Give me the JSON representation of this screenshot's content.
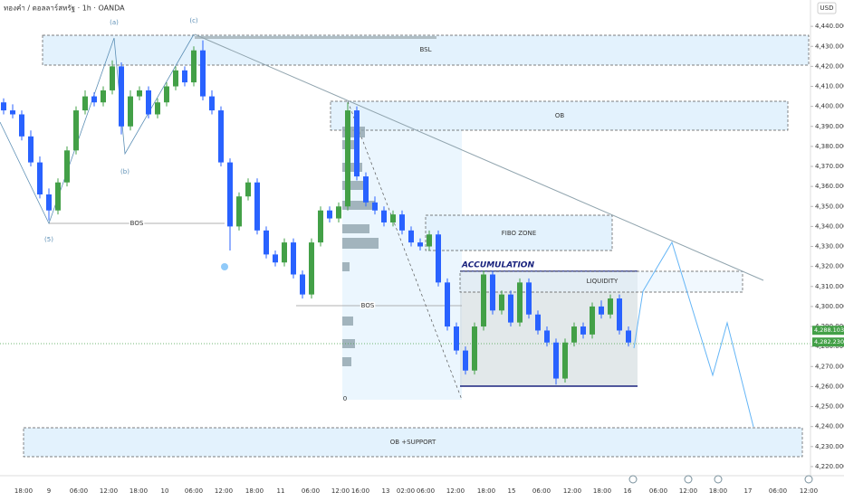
{
  "chart_data": {
    "type": "candlestick",
    "title": "ทองคำ / ดอลลาร์สหรัฐ · 1h · OANDA",
    "currency": "USD",
    "up_color": "#43a047",
    "down_color": "#2962ff",
    "open": [
      4402,
      4398,
      4396,
      4385,
      4372,
      4356,
      4348,
      4362,
      4378,
      4398,
      4405,
      4402,
      4408,
      4420,
      4390,
      4405,
      4408,
      4396,
      4402,
      4410,
      4418,
      4412,
      4428,
      4405,
      4398,
      4372,
      4340,
      4355,
      4362,
      4338,
      4326,
      4322,
      4332,
      4316,
      4306,
      4332,
      4348,
      4344,
      4350,
      4398,
      4365,
      4352,
      4348,
      4342,
      4346,
      4338,
      4332,
      4330,
      4336,
      4312,
      4290,
      4278,
      4268,
      4290,
      4316,
      4298,
      4306,
      4292,
      4312,
      4296,
      4288,
      4282,
      4264,
      4282,
      4290,
      4286,
      4300,
      4296,
      4304,
      4288
    ],
    "high": [
      4404,
      4401,
      4398,
      4388,
      4375,
      4359,
      4364,
      4380,
      4400,
      4408,
      4407,
      4410,
      4423,
      4422,
      4408,
      4410,
      4410,
      4404,
      4412,
      4420,
      4420,
      4430,
      4433,
      4408,
      4400,
      4374,
      4357,
      4364,
      4364,
      4340,
      4328,
      4334,
      4334,
      4318,
      4334,
      4350,
      4350,
      4352,
      4402,
      4400,
      4367,
      4355,
      4350,
      4348,
      4348,
      4340,
      4334,
      4338,
      4338,
      4314,
      4292,
      4280,
      4292,
      4318,
      4318,
      4308,
      4308,
      4314,
      4314,
      4298,
      4290,
      4284,
      4284,
      4292,
      4292,
      4302,
      4303,
      4306,
      4306,
      4290
    ],
    "low": [
      4396,
      4394,
      4383,
      4370,
      4354,
      4343,
      4346,
      4360,
      4376,
      4396,
      4400,
      4400,
      4406,
      4386,
      4388,
      4403,
      4394,
      4394,
      4400,
      4408,
      4410,
      4410,
      4403,
      4396,
      4370,
      4328,
      4338,
      4353,
      4336,
      4324,
      4320,
      4320,
      4314,
      4304,
      4304,
      4330,
      4342,
      4342,
      4348,
      4363,
      4350,
      4346,
      4340,
      4340,
      4336,
      4330,
      4328,
      4328,
      4310,
      4288,
      4276,
      4266,
      4266,
      4288,
      4296,
      4296,
      4290,
      4290,
      4294,
      4286,
      4280,
      4261,
      4262,
      4280,
      4284,
      4284,
      4294,
      4294,
      4286,
      4280
    ],
    "close": [
      4398,
      4396,
      4385,
      4372,
      4356,
      4348,
      4362,
      4378,
      4398,
      4405,
      4402,
      4408,
      4420,
      4390,
      4405,
      4408,
      4396,
      4402,
      4410,
      4418,
      4412,
      4428,
      4405,
      4398,
      4372,
      4340,
      4355,
      4362,
      4338,
      4326,
      4322,
      4332,
      4316,
      4306,
      4332,
      4348,
      4344,
      4350,
      4398,
      4365,
      4352,
      4348,
      4342,
      4346,
      4338,
      4332,
      4330,
      4336,
      4312,
      4290,
      4278,
      4268,
      4290,
      4316,
      4298,
      4306,
      4292,
      4312,
      4296,
      4288,
      4282,
      4264,
      4282,
      4290,
      4286,
      4300,
      4296,
      4304,
      4288,
      4282
    ],
    "ylim": [
      4215,
      4450
    ],
    "yticks": [
      {
        "value": 4220,
        "label": "4,220.000"
      },
      {
        "value": 4230,
        "label": "4,230.000"
      },
      {
        "value": 4240,
        "label": "4,240.000"
      },
      {
        "value": 4250,
        "label": "4,250.000"
      },
      {
        "value": 4260,
        "label": "4,260.000"
      },
      {
        "value": 4270,
        "label": "4,270.000"
      },
      {
        "value": 4280,
        "label": "4,280.000"
      },
      {
        "value": 4290,
        "label": "4,290.000"
      },
      {
        "value": 4300,
        "label": "4,300.000"
      },
      {
        "value": 4310,
        "label": "4,310.000"
      },
      {
        "value": 4320,
        "label": "4,320.000"
      },
      {
        "value": 4330,
        "label": "4,330.000"
      },
      {
        "value": 4340,
        "label": "4,340.000"
      },
      {
        "value": 4350,
        "label": "4,350.000"
      },
      {
        "value": 4360,
        "label": "4,360.000"
      },
      {
        "value": 4370,
        "label": "4,370.000"
      },
      {
        "value": 4380,
        "label": "4,380.000"
      },
      {
        "value": 4390,
        "label": "4,390.000"
      },
      {
        "value": 4400,
        "label": "4,400.000"
      },
      {
        "value": 4410,
        "label": "4,410.000"
      },
      {
        "value": 4420,
        "label": "4,420.000"
      },
      {
        "value": 4430,
        "label": "4,430.000"
      },
      {
        "value": 4440,
        "label": "4,440.000"
      }
    ],
    "price_labels": [
      {
        "value": 4288.103,
        "label": "4,288.103"
      },
      {
        "value": 4282.23,
        "label": "4,282.230"
      }
    ],
    "x_labels": [
      "18:00",
      "9",
      "06:00",
      "12:00",
      "18:00",
      "10",
      "06:00",
      "12:00",
      "18:00",
      "11",
      "06:00",
      "12:00",
      "16:00",
      "13",
      "02:00",
      "06:00",
      "12:00",
      "18:00",
      "15",
      "06:00",
      "12:00",
      "18:00",
      "16",
      "06:00",
      "12:00",
      "18:00",
      "17",
      "06:00",
      "12:00"
    ],
    "annotations": [
      "BSL",
      "OB",
      "FIBO ZONE",
      "LIQUIDITY",
      "ACCUMULATION",
      "OB +SUPPORT",
      "BOS",
      "BOS",
      "(a)",
      "(c)",
      "(b)",
      "(5)",
      "0"
    ]
  }
}
